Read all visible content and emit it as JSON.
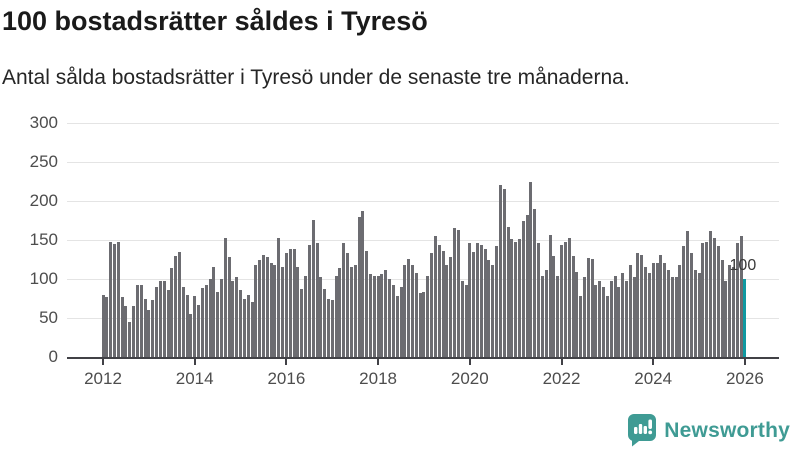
{
  "header": {
    "title": "100 bostadsrätter såldes i Tyresö",
    "subtitle": "Antal sålda bostadsrätter i Tyresö under de senaste tre månaderna."
  },
  "chart_data": {
    "type": "bar",
    "title": "100 bostadsrätter såldes i Tyresö",
    "subtitle": "Antal sålda bostadsrätter i Tyresö under de senaste tre månaderna.",
    "x_start_year": 2012,
    "x_interval": "monthly",
    "x_tick_labels": [
      "2012",
      "2014",
      "2016",
      "2018",
      "2020",
      "2022",
      "2024",
      "2026"
    ],
    "y_tick_labels": [
      "0",
      "50",
      "100",
      "150",
      "200",
      "250",
      "300"
    ],
    "y_tick_values": [
      0,
      50,
      100,
      150,
      200,
      250,
      300
    ],
    "ylim": [
      0,
      300
    ],
    "grid": "horizontal",
    "values": [
      79,
      77,
      148,
      145,
      148,
      77,
      65,
      45,
      65,
      92,
      92,
      75,
      60,
      73,
      90,
      97,
      97,
      86,
      114,
      129,
      135,
      90,
      79,
      55,
      78,
      67,
      88,
      93,
      100,
      115,
      84,
      100,
      153,
      128,
      97,
      102,
      86,
      74,
      79,
      70,
      118,
      124,
      131,
      128,
      121,
      118,
      152,
      116,
      134,
      138,
      138,
      116,
      87,
      104,
      144,
      176,
      146,
      103,
      87,
      75,
      73,
      104,
      114,
      146,
      134,
      116,
      118,
      179,
      187,
      136,
      107,
      104,
      104,
      107,
      111,
      100,
      93,
      78,
      90,
      118,
      126,
      118,
      108,
      82,
      84,
      104,
      134,
      155,
      144,
      136,
      118,
      128,
      165,
      163,
      97,
      93,
      146,
      135,
      146,
      144,
      138,
      124,
      118,
      142,
      221,
      215,
      167,
      151,
      148,
      151,
      174,
      182,
      224,
      190,
      146,
      104,
      112,
      157,
      130,
      104,
      144,
      148,
      153,
      129,
      109,
      78,
      103,
      127,
      126,
      93,
      97,
      90,
      78,
      97,
      104,
      90,
      108,
      97,
      118,
      103,
      133,
      131,
      115,
      108,
      121,
      121,
      131,
      121,
      112,
      103,
      103,
      118,
      142,
      162,
      133,
      112,
      108,
      146,
      148,
      161,
      153,
      142,
      125,
      98,
      118,
      115,
      146,
      155,
      100
    ],
    "highlight": {
      "index": 168,
      "value": 100,
      "label": "100"
    },
    "colors": {
      "bar": "#6c6c71",
      "highlight": "#0f99a1",
      "grid": "#e4e4e4",
      "axis": "#414146",
      "tick_label": "#4d4d4d"
    }
  },
  "footer": {
    "brand": "Newsworthy",
    "brand_color": "#3f9b94",
    "logo_icon": "newsworthy-chart-bubble-icon"
  }
}
